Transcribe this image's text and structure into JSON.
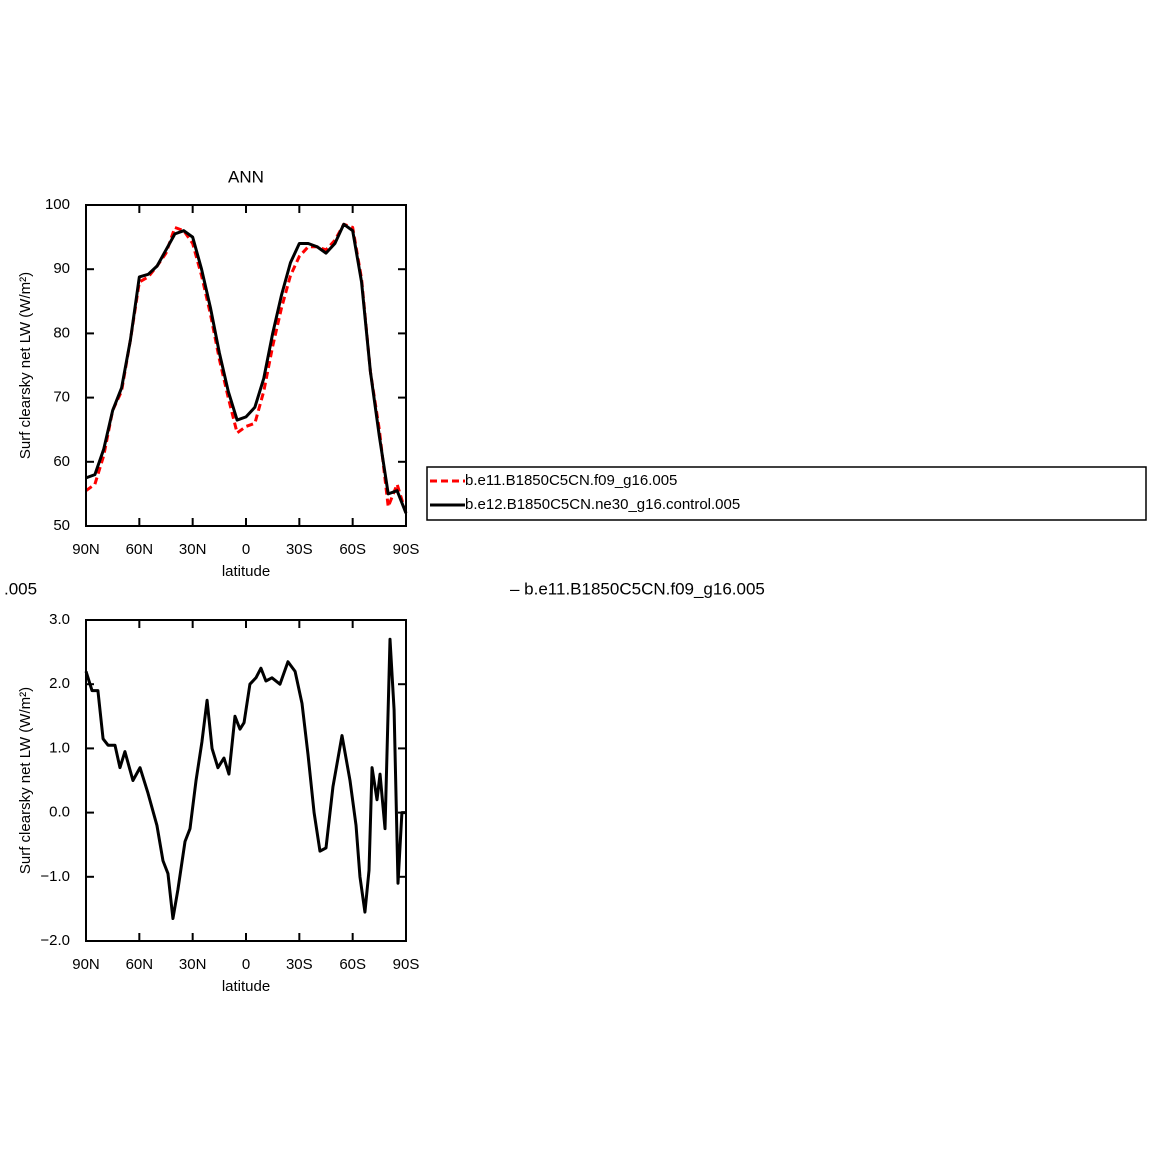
{
  "chart_data": [
    {
      "type": "line",
      "title": "ANN",
      "ylabel": "Surf clearsky net LW (W/m²)",
      "xlabel": "latitude",
      "x": [
        90,
        85,
        80,
        75,
        70,
        65,
        60,
        55,
        50,
        45,
        40,
        35,
        30,
        25,
        20,
        15,
        10,
        5,
        0,
        -5,
        -10,
        -15,
        -20,
        -25,
        -30,
        -35,
        -40,
        -45,
        -50,
        -55,
        -60,
        -65,
        -70,
        -75,
        -80,
        -85,
        -90
      ],
      "series": [
        {
          "name": "b.e11.B1850C5CN.f09_g16.005",
          "color": "#ff0000",
          "style": "dashed",
          "values": [
            55.5,
            56.5,
            61,
            68,
            71,
            79,
            88,
            88.8,
            90.5,
            92.5,
            96.5,
            96,
            94,
            89,
            83,
            76,
            70,
            64.5,
            65.5,
            66,
            71,
            78,
            84,
            89,
            92,
            93.5,
            93.5,
            93,
            94.5,
            97,
            96.5,
            88.5,
            74,
            65,
            53,
            56.5,
            52
          ]
        },
        {
          "name": "b.e12.B1850C5CN.ne30_g16.control.005",
          "color": "#000000",
          "style": "solid",
          "values": [
            57.5,
            58,
            62,
            68,
            71.5,
            79,
            88.8,
            89.2,
            90.5,
            93,
            95.5,
            96,
            95,
            90,
            84,
            77,
            71,
            66.5,
            67,
            68.5,
            73,
            80,
            86,
            91,
            94,
            94,
            93.5,
            92.5,
            94,
            97,
            96,
            88,
            74,
            64,
            55,
            55.5,
            52
          ]
        }
      ],
      "xlim": [
        90,
        -90
      ],
      "xticks": [
        {
          "value": 90,
          "label": "90N"
        },
        {
          "value": 60,
          "label": "60N"
        },
        {
          "value": 30,
          "label": "30N"
        },
        0,
        {
          "value": -30,
          "label": "30S"
        },
        {
          "value": -60,
          "label": "60S"
        },
        {
          "value": -90,
          "label": "90S"
        }
      ],
      "ylim": [
        50,
        100
      ],
      "yticks": [
        50,
        60,
        70,
        80,
        90,
        100
      ],
      "legend": "right"
    },
    {
      "type": "line",
      "title_left": ".005",
      "title_right": "– b.e11.B1850C5CN.f09_g16.005",
      "ylabel": "Surf clearsky net LW (W/m²)",
      "xlabel": "latitude",
      "x": [
        90,
        86.6,
        83.3,
        80.4,
        77.6,
        73.7,
        70.9,
        68.1,
        63.6,
        59.6,
        55.1,
        50.1,
        46.7,
        43.9,
        41.1,
        38.3,
        34.3,
        31.5,
        28.1,
        24.8,
        21.9,
        19.1,
        15.8,
        12.4,
        9.6,
        6.2,
        3.4,
        1.1,
        -2.2,
        -5.6,
        -8.4,
        -11.2,
        -14.6,
        -19.1,
        -23.6,
        -27.6,
        -31.5,
        -34.9,
        -38.3,
        -41.6,
        -45,
        -48.9,
        -54,
        -58.5,
        -61.9,
        -64.1,
        -66.9,
        -69.2,
        -70.9,
        -73.7,
        -75.4,
        -78.2,
        -81,
        -83.3,
        -85.5,
        -87.7,
        -90
      ],
      "series": [
        {
          "color": "#000000",
          "style": "solid",
          "values": [
            2.2,
            1.9,
            1.9,
            1.15,
            1.05,
            1.05,
            0.7,
            0.95,
            0.5,
            0.7,
            0.3,
            -0.2,
            -0.75,
            -0.95,
            -1.65,
            -1.2,
            -0.45,
            -0.25,
            0.5,
            1.1,
            1.75,
            1.0,
            0.7,
            0.85,
            0.6,
            1.5,
            1.3,
            1.4,
            2.0,
            2.1,
            2.25,
            2.05,
            2.1,
            2.0,
            2.35,
            2.2,
            1.7,
            0.9,
            0.0,
            -0.6,
            -0.55,
            0.4,
            1.2,
            0.5,
            -0.2,
            -1.0,
            -1.55,
            -0.9,
            0.7,
            0.2,
            0.6,
            -0.25,
            2.7,
            1.6,
            -1.1,
            0.0,
            0.0
          ]
        }
      ],
      "xlim": [
        90,
        -90
      ],
      "xticks": [
        {
          "value": 90,
          "label": "90N"
        },
        {
          "value": 60,
          "label": "60N"
        },
        {
          "value": 30,
          "label": "30N"
        },
        0,
        {
          "value": -30,
          "label": "30S"
        },
        {
          "value": -60,
          "label": "60S"
        },
        {
          "value": -90,
          "label": "90S"
        }
      ],
      "ylim": [
        -2,
        3
      ],
      "yticks": [
        {
          "value": -2,
          "label": "−2.0"
        },
        {
          "value": -1,
          "label": "−1.0"
        },
        {
          "value": 0,
          "label": "0.0"
        },
        {
          "value": 1,
          "label": "1.0"
        },
        {
          "value": 2,
          "label": "2.0"
        },
        {
          "value": 3,
          "label": "3.0"
        }
      ]
    }
  ]
}
